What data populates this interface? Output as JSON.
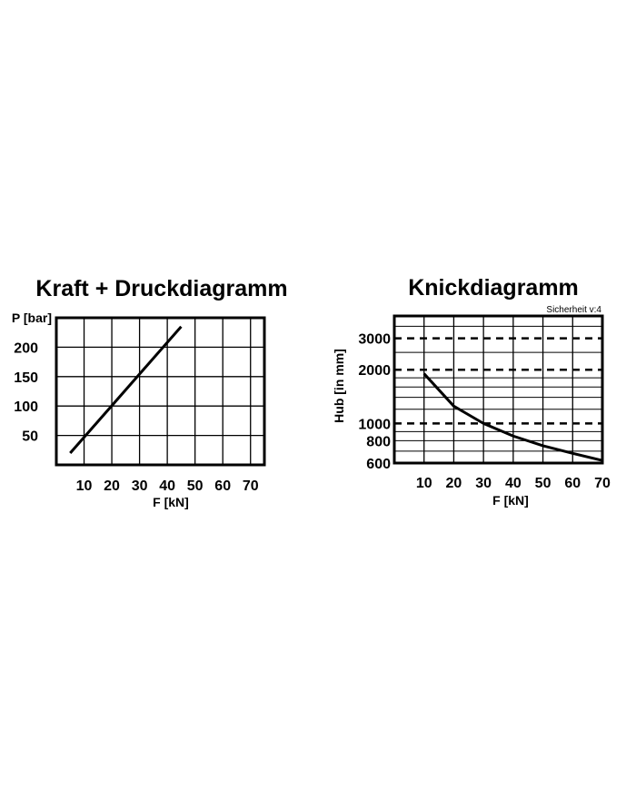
{
  "chart_data": [
    {
      "type": "line",
      "title": "Kraft + Druckdiagramm",
      "xlabel": "F [kN]",
      "ylabel": "P [bar]",
      "xlim": [
        0,
        75
      ],
      "ylim": [
        0,
        250
      ],
      "x_ticks": [
        "10",
        "20",
        "30",
        "40",
        "50",
        "60",
        "70"
      ],
      "y_ticks": [
        "50",
        "100",
        "150",
        "200"
      ],
      "grid": true,
      "series": [
        {
          "x": [
            5,
            45
          ],
          "y": [
            20,
            235
          ]
        }
      ]
    },
    {
      "type": "line",
      "title": "Knickdiagramm",
      "annotation": "Sicherheit v:4",
      "xlabel": "F [kN]",
      "ylabel": "Hub [in mm]",
      "xscale": "linear",
      "yscale": "log",
      "xlim": [
        0,
        70
      ],
      "ylim": [
        600,
        4000
      ],
      "x_ticks": [
        "10",
        "20",
        "30",
        "40",
        "50",
        "60",
        "70"
      ],
      "y_ticks": [
        "600",
        "800",
        "1000",
        "2000",
        "3000"
      ],
      "dashed_reference_lines": [
        3000,
        2000,
        1000
      ],
      "grid": true,
      "series": [
        {
          "x": [
            10,
            20,
            30,
            40,
            50,
            60,
            70
          ],
          "y": [
            1900,
            1250,
            1000,
            850,
            750,
            680,
            620
          ]
        }
      ]
    }
  ]
}
